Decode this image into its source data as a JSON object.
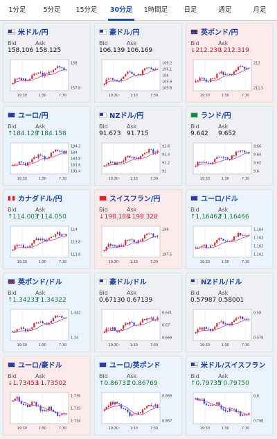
{
  "tabs": [
    {
      "label": "1分足",
      "active": false
    },
    {
      "label": "5分足",
      "active": false
    },
    {
      "label": "15分足",
      "active": false
    },
    {
      "label": "30分足",
      "active": true
    },
    {
      "label": "1時間足",
      "active": false
    },
    {
      "label": "日足",
      "active": false
    },
    {
      "label": "週足",
      "active": false
    },
    {
      "label": "月足",
      "active": false
    }
  ],
  "colors": {
    "accent": "#1a4fb7",
    "up_text": "#1d7a3a",
    "down_text": "#c21d2b",
    "candle_up": "#d62c2c",
    "candle_down": "#2c4fd6",
    "ma_line": "#c040c0"
  },
  "labels": {
    "bid": "Bid",
    "ask": "Ask"
  },
  "x_ticks": [
    "19:30",
    "1:30",
    "7:30"
  ],
  "cards": [
    {
      "pair": "米ドル/円",
      "flag": "us",
      "bid": "158.106",
      "ask": "158.125",
      "dir": "flat",
      "trend": "up",
      "y_ticks": [
        "158",
        "157.8"
      ]
    },
    {
      "pair": "豪ドル/円",
      "flag": "au",
      "bid": "106.139",
      "ask": "106.169",
      "dir": "flat",
      "trend": "up",
      "y_ticks": [
        "106.2",
        "106.1",
        "106",
        "105.9",
        "105.8"
      ]
    },
    {
      "pair": "英ポンド/円",
      "flag": "gb",
      "bid": "↓212.230",
      "ask": "↓212.319",
      "dir": "down",
      "trend": "up",
      "y_ticks": [
        "212",
        "211.5"
      ]
    },
    {
      "pair": "ユーロ/円",
      "flag": "eu",
      "bid": "↑184.129",
      "ask": "↑184.158",
      "dir": "up",
      "trend": "up",
      "y_ticks": [
        "184.2",
        "184",
        "183.8",
        "183.6",
        "183.4"
      ]
    },
    {
      "pair": "NZドル/円",
      "flag": "nz",
      "bid": "91.673",
      "ask": "91.715",
      "dir": "flat",
      "trend": "up",
      "y_ticks": [
        "91.6",
        "91.4",
        "91.2",
        "91"
      ]
    },
    {
      "pair": "ランド/円",
      "flag": "za",
      "bid": "9.642",
      "ask": "9.652",
      "dir": "flat",
      "trend": "up",
      "y_ticks": [
        "9.66",
        "9.64",
        "9.62",
        "9.6"
      ]
    },
    {
      "pair": "カナダドル/円",
      "flag": "ca",
      "bid": "↑114.003",
      "ask": "↑114.050",
      "dir": "up",
      "trend": "up",
      "y_ticks": [
        "114",
        "113.8",
        "113.6"
      ]
    },
    {
      "pair": "スイスフラン/円",
      "flag": "ch",
      "bid": "↓198.188",
      "ask": "↓198.328",
      "dir": "down",
      "trend": "up",
      "y_ticks": [
        "198",
        "197.5"
      ]
    },
    {
      "pair": "ユーロ/ドル",
      "flag": "eu",
      "bid": "↑1.16462",
      "ask": "↑1.16466",
      "dir": "up",
      "trend": "up",
      "y_ticks": [
        "1.164",
        "1.163",
        "1.162",
        "1.161"
      ]
    },
    {
      "pair": "英ポンド/ドル",
      "flag": "gb",
      "bid": "↑1.34233",
      "ask": "↑1.34322",
      "dir": "up",
      "trend": "up",
      "y_ticks": [
        "1.342",
        "1.34"
      ]
    },
    {
      "pair": "豪ドル/ドル",
      "flag": "au",
      "bid": "0.67130",
      "ask": "0.67139",
      "dir": "flat",
      "trend": "up",
      "y_ticks": [
        "0.671",
        "0.67",
        "0.669"
      ]
    },
    {
      "pair": "NZドル/ドル",
      "flag": "nz",
      "bid": "0.57987",
      "ask": "0.58001",
      "dir": "flat",
      "trend": "up",
      "y_ticks": [
        "0.58",
        "0.578"
      ]
    },
    {
      "pair": "ユーロ/豪ドル",
      "flag": "eu",
      "bid": "↓1.73453",
      "ask": "↓1.73502",
      "dir": "down",
      "trend": "down",
      "y_ticks": [
        "1.736",
        "1.735",
        "1.734"
      ]
    },
    {
      "pair": "ユーロ/英ポンド",
      "flag": "eu",
      "bid": "↑0.86731",
      "ask": "↑0.86769",
      "dir": "up",
      "trend": "mixed",
      "y_ticks": [
        "0.868",
        "0.867"
      ]
    },
    {
      "pair": "米ドル/スイスフラン",
      "flag": "us",
      "bid": "↑0.79735",
      "ask": "↑0.79750",
      "dir": "up",
      "trend": "down",
      "y_ticks": [
        "0.8",
        "0.798"
      ]
    }
  ]
}
